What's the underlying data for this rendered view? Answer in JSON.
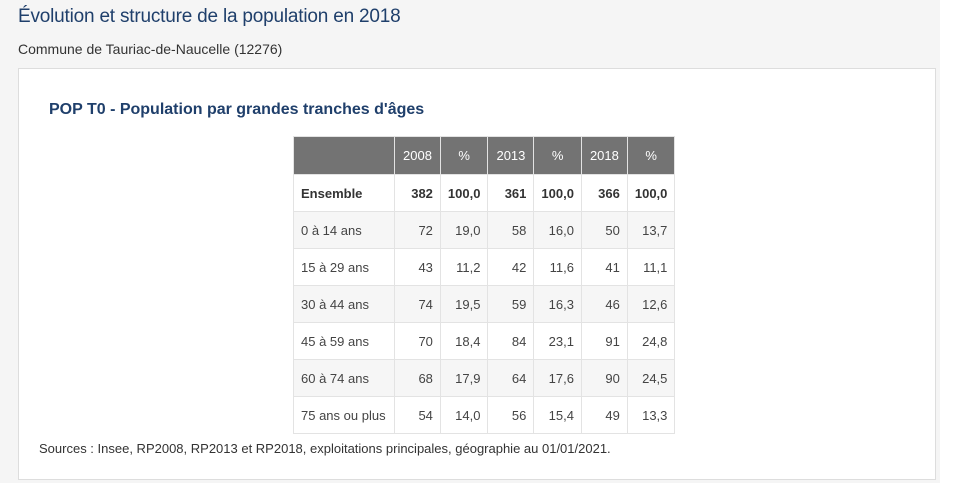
{
  "header": {
    "title": "Évolution et structure de la population en 2018",
    "commune": "Commune de Tauriac-de-Naucelle (12276)"
  },
  "table": {
    "title": "POP T0 - Population par grandes tranches d'âges",
    "columns": [
      "",
      "2008",
      "%",
      "2013",
      "%",
      "2018",
      "%"
    ],
    "rows": [
      {
        "label": "Ensemble",
        "v2008": "382",
        "p2008": "100,0",
        "v2013": "361",
        "p2013": "100,0",
        "v2018": "366",
        "p2018": "100,0"
      },
      {
        "label": "0 à 14 ans",
        "v2008": "72",
        "p2008": "19,0",
        "v2013": "58",
        "p2013": "16,0",
        "v2018": "50",
        "p2018": "13,7"
      },
      {
        "label": "15 à 29 ans",
        "v2008": "43",
        "p2008": "11,2",
        "v2013": "42",
        "p2013": "11,6",
        "v2018": "41",
        "p2018": "11,1"
      },
      {
        "label": "30 à 44 ans",
        "v2008": "74",
        "p2008": "19,5",
        "v2013": "59",
        "p2013": "16,3",
        "v2018": "46",
        "p2018": "12,6"
      },
      {
        "label": "45 à 59 ans",
        "v2008": "70",
        "p2008": "18,4",
        "v2013": "84",
        "p2013": "23,1",
        "v2018": "91",
        "p2018": "24,8"
      },
      {
        "label": "60 à 74 ans",
        "v2008": "68",
        "p2008": "17,9",
        "v2013": "64",
        "p2013": "17,6",
        "v2018": "90",
        "p2018": "24,5"
      },
      {
        "label": "75 ans ou plus",
        "v2008": "54",
        "p2008": "14,0",
        "v2013": "56",
        "p2013": "15,4",
        "v2018": "49",
        "p2018": "13,3"
      }
    ],
    "sources": "Sources : Insee, RP2008, RP2013 et RP2018, exploitations principales, géographie au 01/01/2021."
  }
}
